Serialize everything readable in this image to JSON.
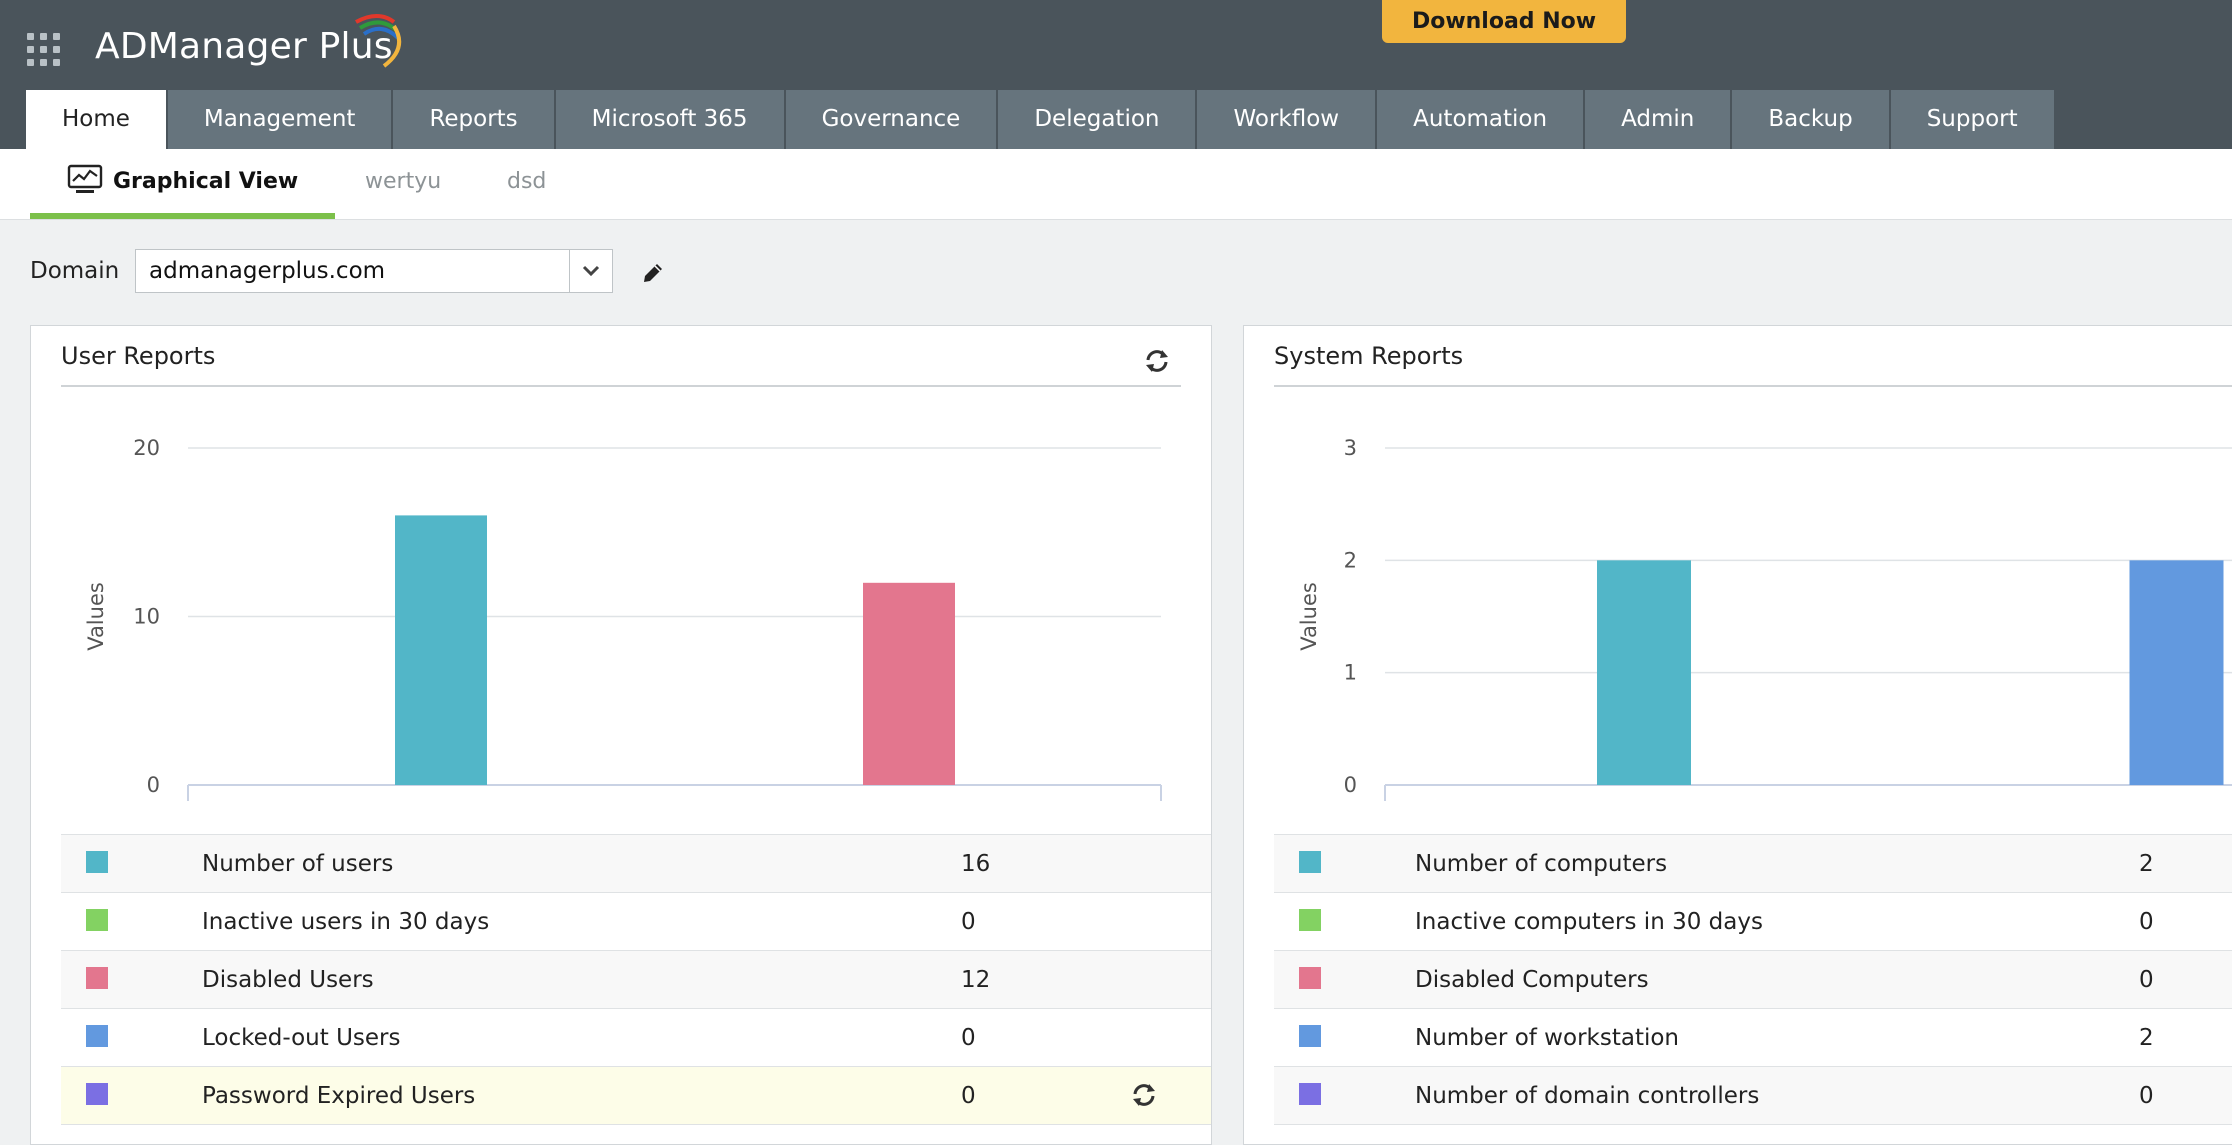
{
  "app": {
    "brand_name": "ADManager",
    "brand_suffix": "Plus",
    "download_label": "Download Now"
  },
  "nav": {
    "tabs": [
      {
        "label": "Home",
        "active": true
      },
      {
        "label": "Management"
      },
      {
        "label": "Reports"
      },
      {
        "label": "Microsoft 365"
      },
      {
        "label": "Governance"
      },
      {
        "label": "Delegation"
      },
      {
        "label": "Workflow"
      },
      {
        "label": "Automation"
      },
      {
        "label": "Admin"
      },
      {
        "label": "Backup"
      },
      {
        "label": "Support"
      }
    ]
  },
  "subtabs": [
    {
      "label": "Graphical View",
      "active": true,
      "icon": "line-chart-icon"
    },
    {
      "label": "wertyu"
    },
    {
      "label": "dsd"
    }
  ],
  "domain": {
    "label": "Domain",
    "value": "admanagerplus.com"
  },
  "user_reports": {
    "title": "User Reports",
    "rows": [
      {
        "label": "Number of users",
        "value": "16",
        "color": "#52b6c8"
      },
      {
        "label": "Inactive users in 30 days",
        "value": "0",
        "color": "#83d262"
      },
      {
        "label": "Disabled Users",
        "value": "12",
        "color": "#e3768e"
      },
      {
        "label": "Locked-out Users",
        "value": "0",
        "color": "#6299df"
      },
      {
        "label": "Password Expired Users",
        "value": "0",
        "color": "#7b6fe3"
      }
    ]
  },
  "system_reports": {
    "title": "System Reports",
    "rows": [
      {
        "label": "Number of computers",
        "value": "2",
        "color": "#52b6c8"
      },
      {
        "label": "Inactive computers in 30 days",
        "value": "0",
        "color": "#83d262"
      },
      {
        "label": "Disabled Computers",
        "value": "0",
        "color": "#e3768e"
      },
      {
        "label": "Number of workstation",
        "value": "2",
        "color": "#6299df"
      },
      {
        "label": "Number of domain controllers",
        "value": "0",
        "color": "#7b6fe3"
      }
    ]
  },
  "chart_data": [
    {
      "type": "bar",
      "title": "User Reports",
      "ylabel": "Values",
      "ylim": [
        0,
        20
      ],
      "yticks": [
        0,
        10,
        20
      ],
      "grid": true,
      "categories": [
        "Number of users",
        "Inactive users in 30 days",
        "Disabled Users",
        "Locked-out Users",
        "Password Expired Users"
      ],
      "values": [
        16,
        0,
        12,
        0,
        0
      ],
      "colors": [
        "#52b6c8",
        "#83d262",
        "#e3768e",
        "#6299df",
        "#7b6fe3"
      ]
    },
    {
      "type": "bar",
      "title": "System Reports",
      "ylabel": "Values",
      "ylim": [
        0,
        3
      ],
      "yticks": [
        0,
        1,
        2,
        3
      ],
      "grid": true,
      "categories": [
        "Number of computers",
        "Inactive computers in 30 days",
        "Disabled Computers",
        "Number of workstation",
        "Number of domain controllers"
      ],
      "values": [
        2,
        0,
        0,
        2,
        0
      ],
      "colors": [
        "#52b6c8",
        "#83d262",
        "#e3768e",
        "#6299df",
        "#7b6fe3"
      ]
    }
  ]
}
